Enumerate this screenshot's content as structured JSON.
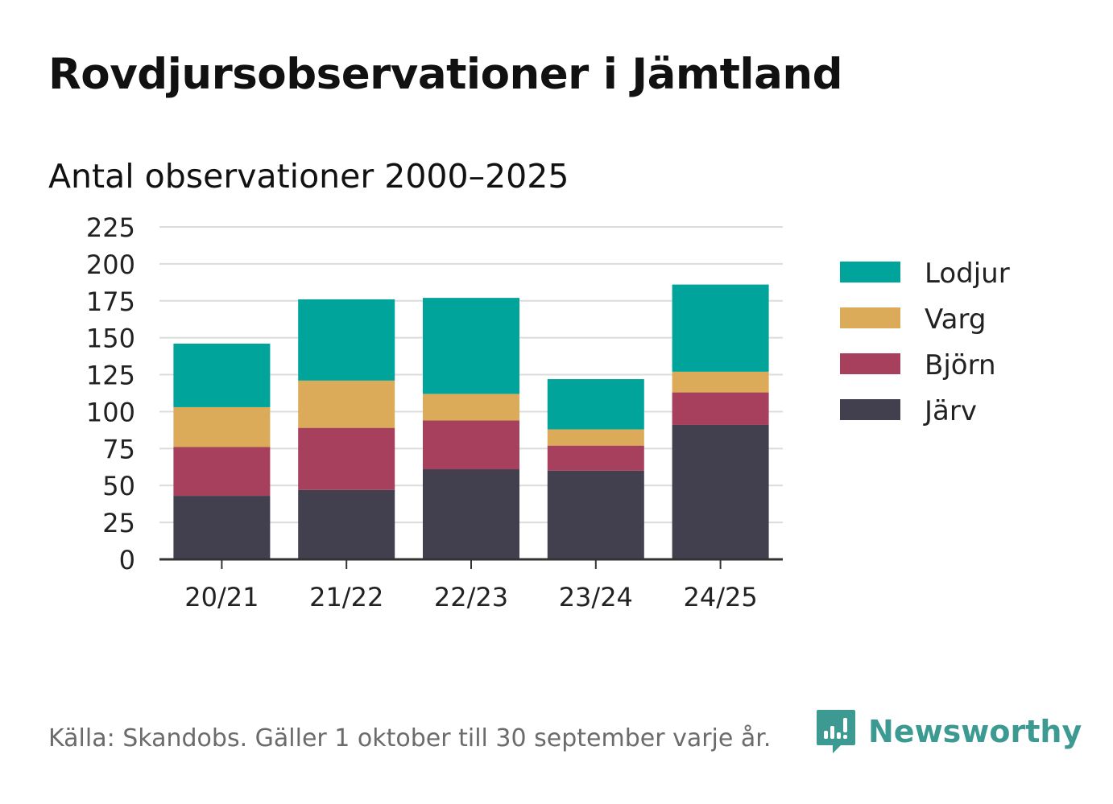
{
  "title": "Rovdjursobservationer i Jämtland",
  "subtitle": "Antal observationer 2000–2025",
  "source": "Källa: Skandobs. Gäller 1 oktober till 30 september varje år.",
  "brand": "Newsworthy",
  "colors": {
    "Järv": "#42404f",
    "Björn": "#a6405c",
    "Varg": "#dbab5a",
    "Lodjur": "#00a49a",
    "grid": "#dcdcdc",
    "axis": "#333333",
    "brand": "#3d9a92"
  },
  "chart_data": {
    "type": "bar",
    "stacked": true,
    "categories": [
      "20/21",
      "21/22",
      "22/23",
      "23/24",
      "24/25"
    ],
    "series": [
      {
        "name": "Järv",
        "values": [
          43,
          47,
          61,
          60,
          91
        ]
      },
      {
        "name": "Björn",
        "values": [
          33,
          42,
          33,
          17,
          22
        ]
      },
      {
        "name": "Varg",
        "values": [
          27,
          32,
          18,
          11,
          14
        ]
      },
      {
        "name": "Lodjur",
        "values": [
          43,
          55,
          65,
          34,
          59
        ]
      }
    ],
    "legend_order": [
      "Lodjur",
      "Varg",
      "Björn",
      "Järv"
    ],
    "yticks": [
      0,
      25,
      50,
      75,
      100,
      125,
      150,
      175,
      200,
      225
    ],
    "ylim": [
      0,
      225
    ],
    "legend_position": "right"
  }
}
